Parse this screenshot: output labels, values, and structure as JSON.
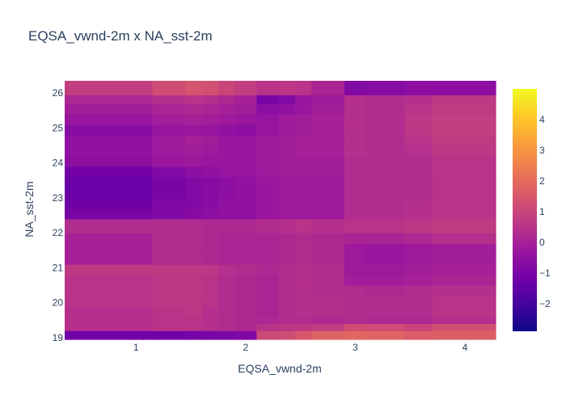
{
  "chart_data": {
    "type": "heatmap",
    "title": "EQSA_vwnd-2m x NA_sst-2m",
    "xlabel": "EQSA_vwnd-2m",
    "ylabel": "NA_sst-2m",
    "xlim": [
      0.35,
      4.28
    ],
    "ylim": [
      18.95,
      26.35
    ],
    "x_ticks": [
      1,
      2,
      3,
      4
    ],
    "x_tick_labels": [
      "1",
      "2",
      "3",
      "4"
    ],
    "y_ticks": [
      19,
      20,
      21,
      22,
      23,
      24,
      25,
      26
    ],
    "y_tick_labels": [
      "19",
      "20",
      "21",
      "22",
      "23",
      "24",
      "25",
      "26"
    ],
    "colorbar": {
      "range": [
        -2.9,
        5.0
      ],
      "ticks": [
        -2,
        -1,
        0,
        1,
        2,
        3,
        4
      ],
      "tick_labels": [
        "−2",
        "−1",
        "0",
        "1",
        "2",
        "3",
        "4"
      ],
      "colorscale": [
        "#0d0887",
        "#46039f",
        "#7201a8",
        "#9c179e",
        "#bd3786",
        "#d8576b",
        "#ed7953",
        "#fb9f3a",
        "#fdca26",
        "#f0f921"
      ]
    },
    "x_edges": [
      0.35,
      1.15,
      1.45,
      1.6,
      1.75,
      1.9,
      2.1,
      2.3,
      2.45,
      2.6,
      2.9,
      3.1,
      3.45,
      3.7,
      4.28
    ],
    "y_edges": [
      18.95,
      19.2,
      19.4,
      19.6,
      19.9,
      20.2,
      20.5,
      20.8,
      21.1,
      21.4,
      21.7,
      22.0,
      22.2,
      22.4,
      22.7,
      23.0,
      23.3,
      23.6,
      23.9,
      24.2,
      24.5,
      24.8,
      25.1,
      25.4,
      25.7,
      25.95,
      26.35
    ],
    "z": [
      [
        -1.2,
        -1.2,
        -1.1,
        -1.0,
        -1.0,
        -0.9,
        1.1,
        1.2,
        1.5,
        1.8,
        1.9,
        1.8,
        1.6,
        1.7
      ],
      [
        0.4,
        0.5,
        0.5,
        0.4,
        0.3,
        0.2,
        0.5,
        0.6,
        0.6,
        0.8,
        1.2,
        1.2,
        1.0,
        1.3
      ],
      [
        0.4,
        0.5,
        0.5,
        0.4,
        0.3,
        0.2,
        0.2,
        0.3,
        0.3,
        0.2,
        0.3,
        0.2,
        0.2,
        0.4
      ],
      [
        0.4,
        0.5,
        0.6,
        0.4,
        0.3,
        0.2,
        0.1,
        0.3,
        0.4,
        0.4,
        0.3,
        0.3,
        0.3,
        0.5
      ],
      [
        0.5,
        0.6,
        0.6,
        0.5,
        0.3,
        0.2,
        0.1,
        0.3,
        0.4,
        0.4,
        0.3,
        0.3,
        0.3,
        0.5
      ],
      [
        0.5,
        0.6,
        0.6,
        0.5,
        0.3,
        0.2,
        0.1,
        0.3,
        0.4,
        0.3,
        0.3,
        0.2,
        0.3,
        0.4
      ],
      [
        0.5,
        0.6,
        0.6,
        0.5,
        0.3,
        0.2,
        0.1,
        0.3,
        0.4,
        0.3,
        -0.1,
        -0.1,
        0.0,
        0.1
      ],
      [
        0.7,
        0.7,
        0.7,
        0.6,
        0.4,
        0.3,
        0.2,
        0.3,
        0.4,
        0.3,
        -0.2,
        -0.2,
        -0.1,
        0.0
      ],
      [
        0.0,
        0.3,
        0.3,
        0.2,
        0.1,
        0.1,
        0.1,
        0.2,
        0.3,
        0.2,
        -0.2,
        -0.3,
        -0.2,
        -0.1
      ],
      [
        0.0,
        0.3,
        0.3,
        0.2,
        0.1,
        0.1,
        0.1,
        0.2,
        0.3,
        0.2,
        -0.2,
        -0.3,
        -0.2,
        -0.1
      ],
      [
        0.0,
        0.3,
        0.3,
        0.2,
        0.1,
        0.1,
        0.1,
        0.2,
        0.3,
        0.2,
        0.1,
        0.1,
        0.2,
        0.4
      ],
      [
        0.3,
        0.3,
        0.3,
        0.2,
        0.2,
        0.2,
        0.3,
        0.4,
        0.5,
        0.4,
        0.5,
        0.5,
        0.6,
        0.7
      ],
      [
        0.3,
        0.3,
        0.3,
        0.2,
        0.2,
        0.2,
        0.3,
        0.4,
        0.5,
        0.4,
        0.5,
        0.5,
        0.6,
        0.7
      ],
      [
        -1.0,
        -0.8,
        -0.7,
        -0.6,
        -0.5,
        -0.5,
        -0.3,
        -0.2,
        -0.2,
        -0.2,
        0.3,
        0.3,
        0.4,
        0.5
      ],
      [
        -1.2,
        -0.9,
        -0.8,
        -0.7,
        -0.5,
        -0.5,
        -0.3,
        -0.2,
        -0.2,
        -0.2,
        0.3,
        0.3,
        0.4,
        0.5
      ],
      [
        -1.3,
        -1.0,
        -0.8,
        -0.7,
        -0.6,
        -0.5,
        -0.3,
        -0.2,
        -0.2,
        -0.2,
        0.3,
        0.3,
        0.3,
        0.5
      ],
      [
        -1.3,
        -1.0,
        -0.8,
        -0.7,
        -0.6,
        -0.5,
        -0.3,
        -0.2,
        -0.2,
        -0.2,
        0.3,
        0.3,
        0.3,
        0.5
      ],
      [
        -1.1,
        -0.8,
        -0.6,
        -0.5,
        -0.4,
        -0.4,
        -0.2,
        -0.1,
        -0.1,
        -0.1,
        0.3,
        0.3,
        0.3,
        0.5
      ],
      [
        -0.6,
        -0.3,
        -0.2,
        -0.3,
        -0.3,
        -0.3,
        -0.2,
        -0.1,
        -0.1,
        -0.1,
        0.3,
        0.3,
        0.3,
        0.5
      ],
      [
        -0.5,
        -0.2,
        -0.1,
        -0.2,
        -0.3,
        -0.3,
        -0.2,
        -0.1,
        0.0,
        0.0,
        0.4,
        0.3,
        0.4,
        0.6
      ],
      [
        -0.5,
        -0.2,
        0.0,
        -0.1,
        -0.3,
        -0.3,
        -0.2,
        -0.1,
        0.0,
        0.0,
        0.4,
        0.3,
        0.5,
        0.7
      ],
      [
        -0.7,
        -0.4,
        -0.3,
        -0.4,
        -0.5,
        -0.6,
        -0.4,
        -0.2,
        -0.1,
        0.0,
        0.4,
        0.3,
        0.6,
        0.8
      ],
      [
        -0.3,
        -0.1,
        0.0,
        -0.1,
        -0.2,
        -0.3,
        -0.4,
        -0.2,
        -0.1,
        0.0,
        0.4,
        0.3,
        0.6,
        0.8
      ],
      [
        -0.1,
        0.1,
        0.2,
        0.1,
        0.0,
        -0.1,
        -0.6,
        -0.5,
        -0.3,
        -0.1,
        0.4,
        0.3,
        0.5,
        0.7
      ],
      [
        0.2,
        0.4,
        0.5,
        0.4,
        0.2,
        0.0,
        -1.0,
        -0.8,
        -0.4,
        -0.2,
        0.4,
        0.3,
        0.4,
        0.6
      ],
      [
        0.8,
        1.2,
        1.4,
        1.3,
        1.0,
        0.8,
        0.5,
        0.6,
        0.5,
        0.1,
        -0.8,
        -0.7,
        -0.6,
        -0.6
      ]
    ]
  }
}
